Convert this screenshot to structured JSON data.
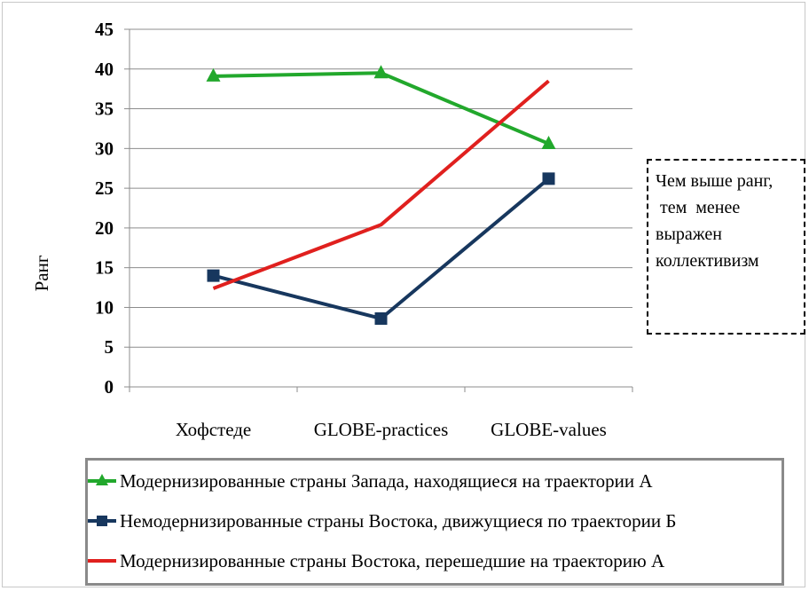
{
  "chart_data": {
    "type": "line",
    "categories": [
      "Хофстеде",
      "GLOBE-practices",
      "GLOBE-values"
    ],
    "ylabel": "Ранг",
    "ylim": [
      0,
      45
    ],
    "yticks": [
      "0",
      "5",
      "10",
      "15",
      "20",
      "25",
      "30",
      "35",
      "40",
      "45"
    ],
    "grid": true,
    "legend_position": "bottom",
    "series": [
      {
        "name": "Модернизированные страны Запада, находящиеся на траектории А",
        "values": [
          39.1,
          39.5,
          30.6
        ],
        "color": "#22a82c",
        "marker": "triangle"
      },
      {
        "name": "Немодернизированные страны Востока, движущиеся по траектории Б",
        "values": [
          14.0,
          8.6,
          26.2
        ],
        "color": "#17375e",
        "marker": "square"
      },
      {
        "name": "Модернизированные страны Востока, перешедшие на траекторию А",
        "values": [
          12.4,
          20.4,
          38.5
        ],
        "color": "#e0201e",
        "marker": "none"
      }
    ]
  },
  "note": {
    "lines": [
      "Чем выше ранг,",
      " тем  менее",
      "выражен",
      "коллективизм"
    ]
  }
}
